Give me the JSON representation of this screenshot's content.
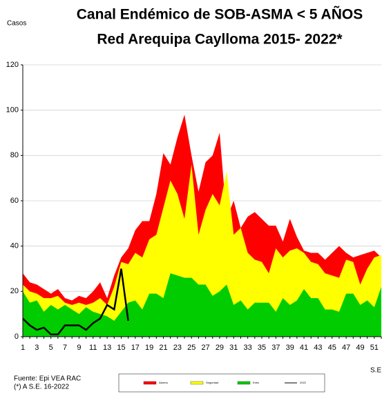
{
  "chart_data": {
    "type": "area",
    "title": [
      "Canal Endémico de SOB-ASMA < 5 AÑOS",
      "Red Arequipa Caylloma 2015- 2022*"
    ],
    "ylabel": "Casos",
    "xlabel": "S.E",
    "notes": [
      "Fuente: Epi VEA RAC",
      "(*) A S.E. 16-2022"
    ],
    "categories": [
      1,
      null,
      3,
      null,
      5,
      null,
      7,
      null,
      9,
      null,
      11,
      null,
      13,
      null,
      15,
      null,
      17,
      null,
      19,
      null,
      21,
      null,
      23,
      null,
      25,
      null,
      27,
      null,
      29,
      null,
      31,
      null,
      33,
      null,
      35,
      null,
      37,
      null,
      39,
      null,
      41,
      null,
      43,
      null,
      45,
      null,
      47,
      null,
      49,
      null,
      51,
      null
    ],
    "ylim": [
      0,
      120
    ],
    "yticks": [
      0,
      20,
      40,
      60,
      80,
      100,
      120
    ],
    "grid": true,
    "series": [
      {
        "name": "Alarma",
        "color": "#ff0000",
        "values": [
          28,
          24,
          23,
          21,
          19,
          21,
          17,
          16,
          18,
          17,
          20,
          24,
          17,
          27,
          35,
          39,
          47,
          51,
          51,
          63,
          81,
          76,
          88,
          98,
          80,
          64,
          77,
          80,
          90,
          52,
          60,
          48,
          53,
          55,
          52,
          49,
          49,
          42,
          52,
          44,
          38,
          37,
          37,
          34,
          37,
          40,
          37,
          35,
          36,
          37,
          38,
          35
        ]
      },
      {
        "name": "Seguridad",
        "color": "#ffff00",
        "values": [
          23,
          20,
          19,
          17,
          17,
          18,
          15,
          14,
          15,
          14,
          15,
          17,
          14,
          22,
          33,
          32,
          37,
          35,
          43,
          45,
          57,
          69,
          63,
          52,
          76,
          45,
          56,
          63,
          58,
          73,
          45,
          48,
          37,
          34,
          33,
          28,
          39,
          35,
          38,
          39,
          37,
          33,
          32,
          28,
          27,
          26,
          34,
          33,
          23,
          30,
          35,
          36
        ]
      },
      {
        "name": "Exito",
        "color": "#00cc00",
        "values": [
          20,
          15,
          16,
          11,
          14,
          12,
          14,
          12,
          10,
          13,
          11,
          10,
          9,
          7,
          11,
          15,
          16,
          12,
          19,
          19,
          17,
          28,
          27,
          26,
          26,
          23,
          23,
          18,
          20,
          23,
          14,
          16,
          12,
          15,
          15,
          15,
          11,
          17,
          14,
          16,
          21,
          17,
          17,
          12,
          12,
          11,
          19,
          19,
          14,
          16,
          13,
          22
        ]
      },
      {
        "name": "2022",
        "color": "#000000",
        "line": true,
        "values": [
          8,
          5,
          3,
          4,
          1,
          1,
          5,
          5,
          5,
          3,
          6,
          8,
          14,
          12,
          30,
          7,
          null,
          null,
          null,
          null,
          null,
          null,
          null,
          null,
          null,
          null,
          null,
          null,
          null,
          null,
          null,
          null,
          null,
          null,
          null,
          null,
          null,
          null,
          null,
          null,
          null,
          null,
          null,
          null,
          null,
          null,
          null,
          null,
          null,
          null,
          null,
          null
        ]
      }
    ]
  }
}
